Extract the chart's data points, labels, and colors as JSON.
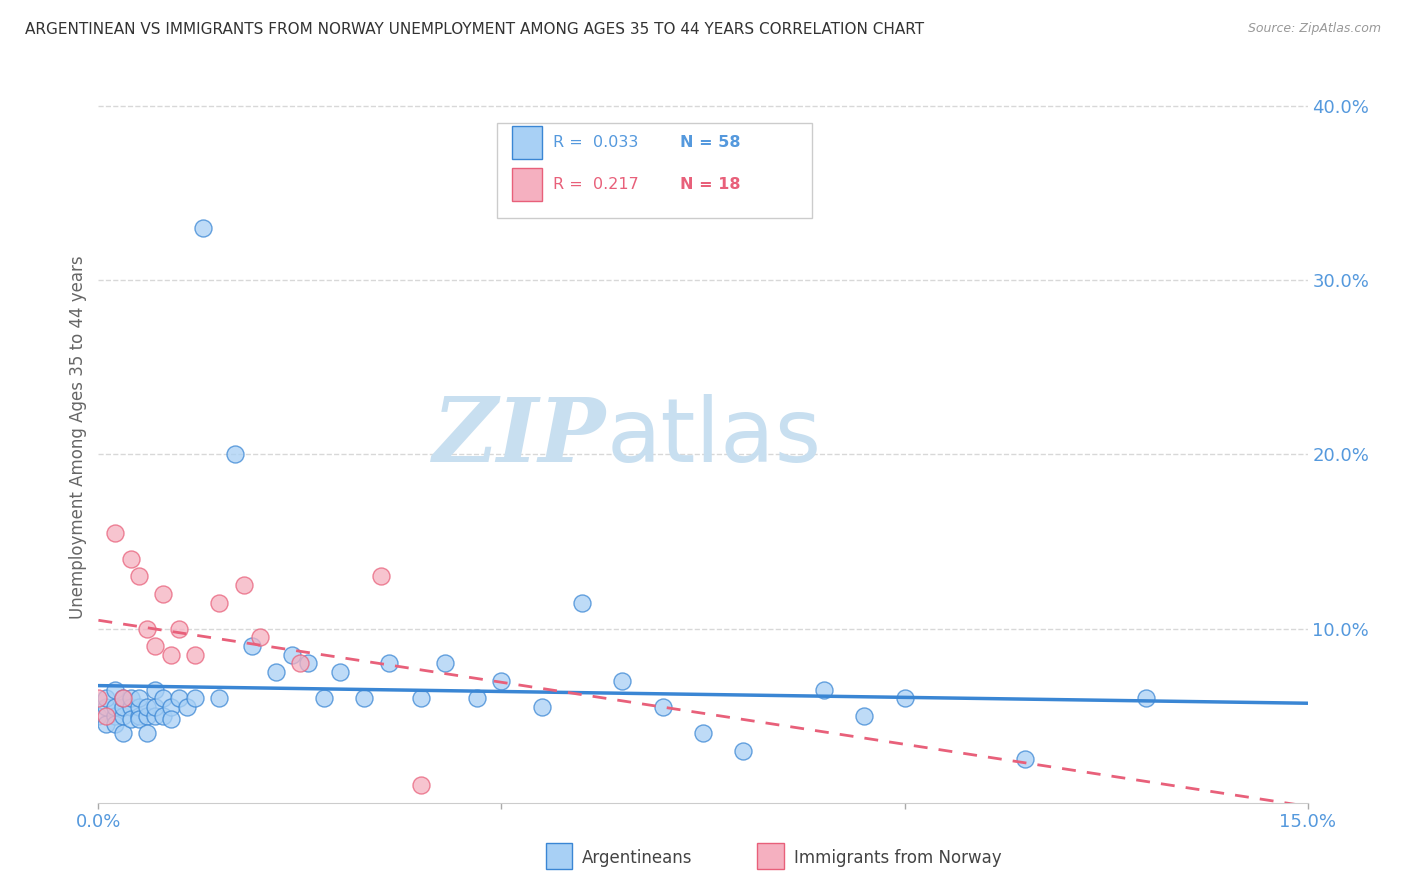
{
  "title": "ARGENTINEAN VS IMMIGRANTS FROM NORWAY UNEMPLOYMENT AMONG AGES 35 TO 44 YEARS CORRELATION CHART",
  "source_text": "Source: ZipAtlas.com",
  "ylabel": "Unemployment Among Ages 35 to 44 years",
  "xlim": [
    0.0,
    0.15
  ],
  "ylim": [
    0.0,
    0.42
  ],
  "xticks": [
    0.0,
    0.05,
    0.1,
    0.15
  ],
  "xticklabels": [
    "0.0%",
    "",
    "",
    "15.0%"
  ],
  "yticks_right": [
    0.0,
    0.1,
    0.2,
    0.3,
    0.4
  ],
  "yticklabels_right": [
    "",
    "10.0%",
    "20.0%",
    "30.0%",
    "40.0%"
  ],
  "legend_r1": "R =  0.033",
  "legend_n1": "N = 58",
  "legend_r2": "R =  0.217",
  "legend_n2": "N = 18",
  "color_argentinean": "#a8d0f5",
  "color_norway": "#f5b0c0",
  "color_line_argentinean": "#3a86d4",
  "color_line_norway": "#e8607a",
  "watermark_zip": "ZIP",
  "watermark_atlas": "atlas",
  "watermark_color_zip": "#c8dff0",
  "watermark_color_atlas": "#c8dff0",
  "background_color": "#ffffff",
  "grid_color": "#d8d8d8",
  "tick_color": "#5599dd",
  "label_color": "#666666",
  "argentinean_x": [
    0.0,
    0.001,
    0.001,
    0.001,
    0.002,
    0.002,
    0.002,
    0.002,
    0.003,
    0.003,
    0.003,
    0.003,
    0.004,
    0.004,
    0.004,
    0.005,
    0.005,
    0.005,
    0.005,
    0.006,
    0.006,
    0.006,
    0.007,
    0.007,
    0.007,
    0.008,
    0.008,
    0.009,
    0.009,
    0.01,
    0.011,
    0.012,
    0.013,
    0.015,
    0.017,
    0.019,
    0.022,
    0.024,
    0.026,
    0.028,
    0.03,
    0.033,
    0.036,
    0.04,
    0.043,
    0.047,
    0.05,
    0.055,
    0.06,
    0.065,
    0.07,
    0.075,
    0.08,
    0.09,
    0.095,
    0.1,
    0.115,
    0.13
  ],
  "argentinean_y": [
    0.05,
    0.045,
    0.055,
    0.06,
    0.05,
    0.045,
    0.055,
    0.065,
    0.05,
    0.055,
    0.06,
    0.04,
    0.055,
    0.048,
    0.06,
    0.05,
    0.055,
    0.048,
    0.06,
    0.05,
    0.055,
    0.04,
    0.05,
    0.055,
    0.065,
    0.05,
    0.06,
    0.055,
    0.048,
    0.06,
    0.055,
    0.06,
    0.33,
    0.06,
    0.2,
    0.09,
    0.075,
    0.085,
    0.08,
    0.06,
    0.075,
    0.06,
    0.08,
    0.06,
    0.08,
    0.06,
    0.07,
    0.055,
    0.115,
    0.07,
    0.055,
    0.04,
    0.03,
    0.065,
    0.05,
    0.06,
    0.025,
    0.06
  ],
  "norway_x": [
    0.0,
    0.001,
    0.002,
    0.003,
    0.004,
    0.005,
    0.006,
    0.007,
    0.008,
    0.009,
    0.01,
    0.012,
    0.015,
    0.018,
    0.02,
    0.025,
    0.035,
    0.04
  ],
  "norway_y": [
    0.06,
    0.05,
    0.155,
    0.06,
    0.14,
    0.13,
    0.1,
    0.09,
    0.12,
    0.085,
    0.1,
    0.085,
    0.115,
    0.125,
    0.095,
    0.08,
    0.13,
    0.01
  ]
}
